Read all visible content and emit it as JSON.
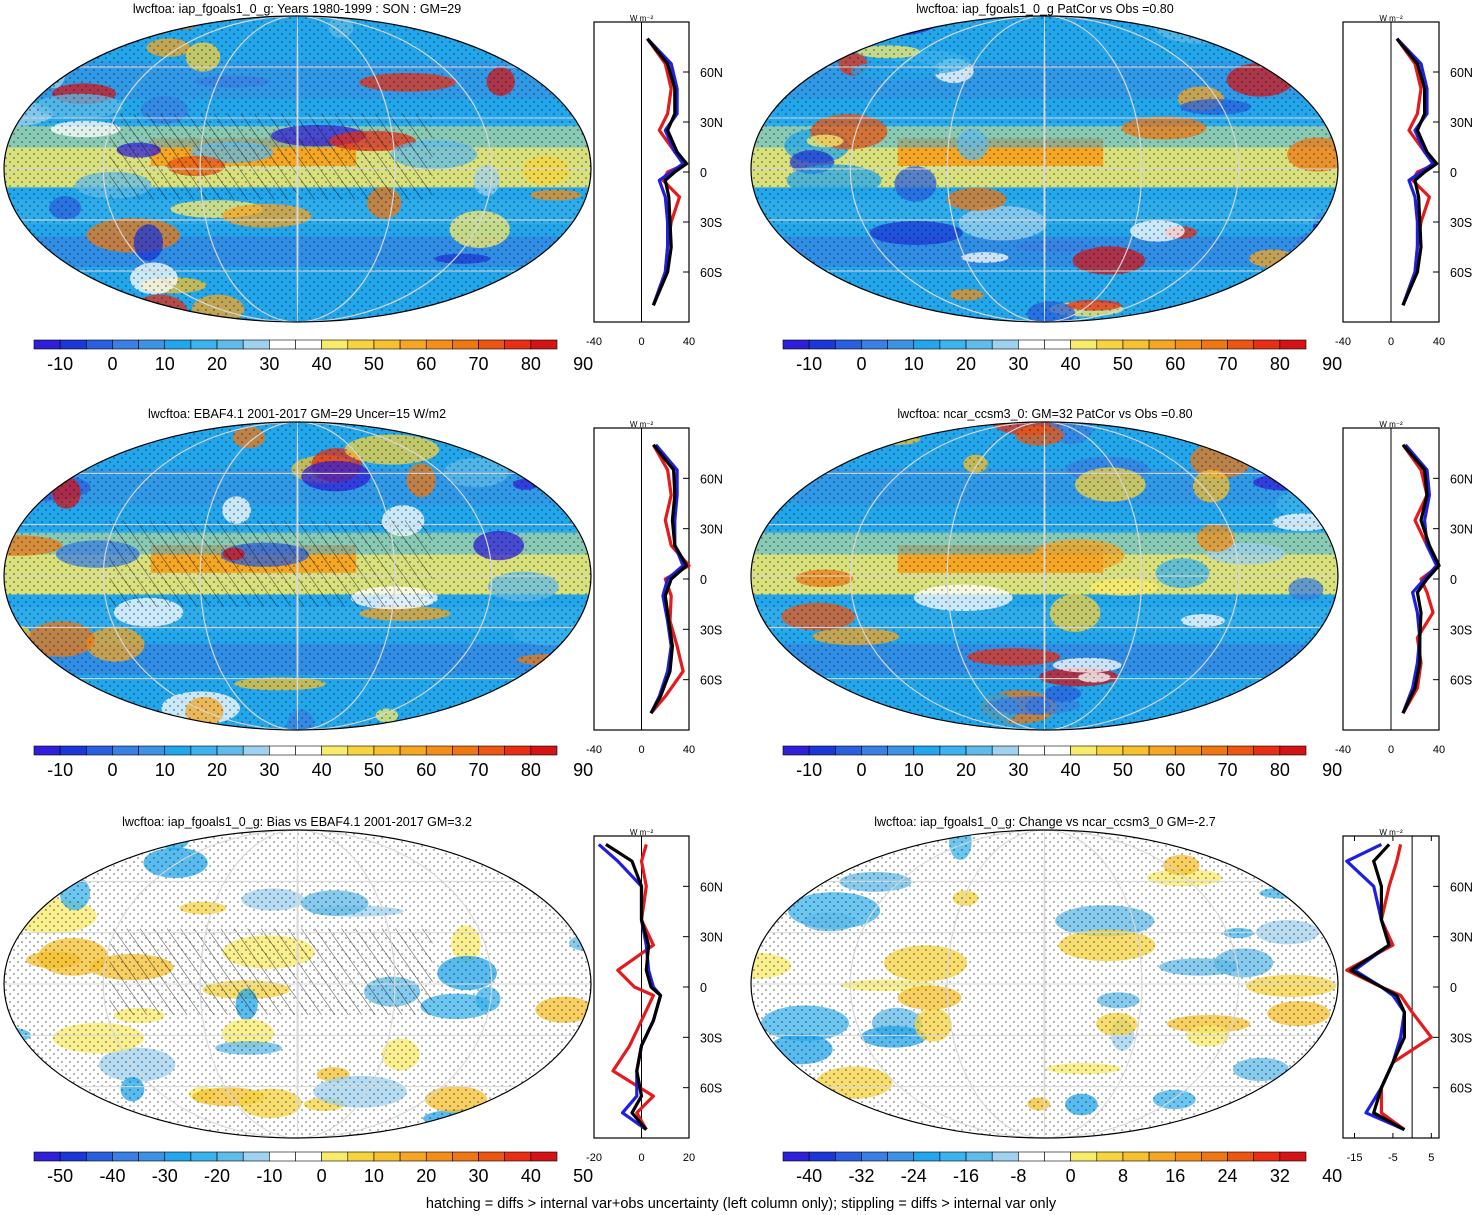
{
  "footer_note": "hatching = diffs > internal var+obs uncertainty (left column only); stippling = diffs > internal var only",
  "units_label": "W m⁻²",
  "lat_ticks": [
    "60N",
    "30N",
    "0",
    "30S",
    "60S"
  ],
  "lat_values": [
    60,
    30,
    0,
    -30,
    -60
  ],
  "colors": {
    "full_scale": [
      "#2f1fd9",
      "#1c37d8",
      "#2a60df",
      "#3a7fe4",
      "#3c93e6",
      "#22a6ec",
      "#3ab3ee",
      "#5fbbea",
      "#9ed2ef",
      "#ffffff",
      "#ffffff",
      "#f9eb6a",
      "#f6d33f",
      "#f6c02e",
      "#f5a623",
      "#f38f19",
      "#ef7713",
      "#eb5612",
      "#e82e14",
      "#d41316"
    ],
    "line_model": "#e41a1c",
    "line_obs": "#1f1fe0",
    "line_ref": "#000000"
  },
  "panels": [
    {
      "id": "model",
      "title": "lwcftoa: iap_fgoals1_0_g: Years 1980-1999 : SON : GM=29",
      "colorbar_labels": [
        "-10",
        "0",
        "10",
        "20",
        "30",
        "40",
        "50",
        "60",
        "70",
        "80",
        "90"
      ],
      "profile_ticks": [
        "-40",
        "0",
        "40"
      ],
      "hatched": true,
      "style": "full",
      "chart_data": {
        "type": "line",
        "x_label": "",
        "y_label": "",
        "xlim": [
          -40,
          40
        ],
        "ylim": [
          -90,
          90
        ],
        "series": [
          {
            "color": "red",
            "lat": [
              -80,
              -60,
              -45,
              -30,
              -15,
              -5,
              0,
              5,
              12,
              25,
              35,
              50,
              65,
              80
            ],
            "values": [
              10,
              20,
              22,
              25,
              32,
              18,
              22,
              38,
              28,
              15,
              22,
              25,
              20,
              5
            ]
          },
          {
            "color": "blue",
            "lat": [
              -80,
              -60,
              -45,
              -30,
              -15,
              -5,
              0,
              5,
              12,
              25,
              35,
              50,
              65,
              80
            ],
            "values": [
              10,
              20,
              22,
              22,
              20,
              15,
              25,
              35,
              28,
              20,
              30,
              30,
              25,
              5
            ]
          },
          {
            "color": "black",
            "lat": [
              -80,
              -60,
              -45,
              -30,
              -15,
              -5,
              0,
              5,
              12,
              25,
              35,
              50,
              65,
              80
            ],
            "values": [
              10,
              22,
              25,
              24,
              23,
              20,
              28,
              38,
              30,
              22,
              28,
              28,
              22,
              5
            ]
          }
        ]
      }
    },
    {
      "id": "model-patcor",
      "title": "lwcftoa: iap_fgoals1_0_g PatCor vs Obs =0.80",
      "colorbar_labels": [
        "-10",
        "0",
        "10",
        "20",
        "30",
        "40",
        "50",
        "60",
        "70",
        "80",
        "90"
      ],
      "profile_ticks": [
        "-40",
        "0",
        "40"
      ],
      "hatched": false,
      "style": "full",
      "chart_data": {
        "type": "line",
        "x_label": "",
        "y_label": "",
        "xlim": [
          -40,
          40
        ],
        "ylim": [
          -90,
          90
        ],
        "series": [
          {
            "color": "red",
            "lat": [
              -80,
              -60,
              -45,
              -30,
              -15,
              -5,
              0,
              5,
              12,
              25,
              35,
              50,
              65,
              80
            ],
            "values": [
              10,
              20,
              22,
              25,
              32,
              18,
              22,
              38,
              28,
              15,
              22,
              25,
              20,
              5
            ]
          },
          {
            "color": "blue",
            "lat": [
              -80,
              -60,
              -45,
              -30,
              -15,
              -5,
              0,
              5,
              12,
              25,
              35,
              50,
              65,
              80
            ],
            "values": [
              10,
              20,
              22,
              22,
              20,
              15,
              25,
              35,
              28,
              20,
              30,
              30,
              25,
              5
            ]
          },
          {
            "color": "black",
            "lat": [
              -80,
              -60,
              -45,
              -30,
              -15,
              -5,
              0,
              5,
              12,
              25,
              35,
              50,
              65,
              80
            ],
            "values": [
              10,
              22,
              25,
              24,
              23,
              20,
              28,
              38,
              30,
              22,
              28,
              28,
              22,
              5
            ]
          }
        ]
      }
    },
    {
      "id": "obs",
      "title": "lwcftoa: EBAF4.1 2001-2017 GM=29 Uncer=15 W/m2",
      "colorbar_labels": [
        "-10",
        "0",
        "10",
        "20",
        "30",
        "40",
        "50",
        "60",
        "70",
        "80",
        "90"
      ],
      "profile_ticks": [
        "-40",
        "0",
        "40"
      ],
      "hatched": true,
      "style": "full",
      "chart_data": {
        "type": "line",
        "x_label": "",
        "y_label": "",
        "xlim": [
          -40,
          40
        ],
        "ylim": [
          -90,
          90
        ],
        "series": [
          {
            "color": "red",
            "lat": [
              -80,
              -70,
              -55,
              -40,
              -25,
              -10,
              0,
              8,
              20,
              35,
              50,
              65,
              80
            ],
            "values": [
              8,
              20,
              35,
              30,
              24,
              25,
              20,
              40,
              25,
              20,
              25,
              22,
              10
            ]
          },
          {
            "color": "blue",
            "lat": [
              -80,
              -70,
              -55,
              -40,
              -25,
              -10,
              0,
              8,
              20,
              35,
              50,
              65,
              80
            ],
            "values": [
              8,
              15,
              22,
              25,
              22,
              18,
              22,
              35,
              28,
              28,
              30,
              30,
              12
            ]
          },
          {
            "color": "black",
            "lat": [
              -80,
              -70,
              -55,
              -40,
              -25,
              -10,
              0,
              8,
              20,
              35,
              50,
              65,
              80
            ],
            "values": [
              8,
              16,
              24,
              26,
              23,
              20,
              25,
              38,
              28,
              26,
              28,
              27,
              10
            ]
          }
        ]
      }
    },
    {
      "id": "ref",
      "title": "lwcftoa: ncar_ccsm3_0: GM=32 PatCor vs Obs =0.80",
      "colorbar_labels": [
        "-10",
        "0",
        "10",
        "20",
        "30",
        "40",
        "50",
        "60",
        "70",
        "80",
        "90"
      ],
      "profile_ticks": [
        "-40",
        "0",
        "40"
      ],
      "hatched": false,
      "style": "full",
      "chart_data": {
        "type": "line",
        "x_label": "",
        "y_label": "",
        "xlim": [
          -40,
          40
        ],
        "ylim": [
          -90,
          90
        ],
        "series": [
          {
            "color": "red",
            "lat": [
              -80,
              -65,
              -50,
              -35,
              -20,
              -8,
              0,
              8,
              20,
              35,
              50,
              65,
              80
            ],
            "values": [
              10,
              22,
              25,
              22,
              35,
              30,
              25,
              40,
              30,
              20,
              30,
              25,
              10
            ]
          },
          {
            "color": "blue",
            "lat": [
              -80,
              -65,
              -50,
              -35,
              -20,
              -8,
              0,
              8,
              20,
              35,
              50,
              65,
              80
            ],
            "values": [
              10,
              18,
              22,
              24,
              22,
              18,
              28,
              38,
              30,
              28,
              32,
              30,
              12
            ]
          },
          {
            "color": "black",
            "lat": [
              -80,
              -65,
              -50,
              -35,
              -20,
              -8,
              0,
              8,
              20,
              35,
              50,
              65,
              80
            ],
            "values": [
              10,
              20,
              24,
              24,
              25,
              22,
              30,
              40,
              32,
              25,
              30,
              28,
              10
            ]
          }
        ]
      }
    },
    {
      "id": "bias",
      "title": "lwcftoa: iap_fgoals1_0_g: Bias vs EBAF4.1 2001-2017  GM=3.2",
      "colorbar_labels": [
        "-50",
        "-40",
        "-30",
        "-20",
        "-10",
        "0",
        "10",
        "20",
        "30",
        "40",
        "50"
      ],
      "profile_ticks": [
        "-20",
        "0",
        "20"
      ],
      "hatched": true,
      "style": "diff",
      "chart_data": {
        "type": "line",
        "x_label": "",
        "y_label": "",
        "xlim": [
          -20,
          20
        ],
        "ylim": [
          -90,
          90
        ],
        "series": [
          {
            "color": "red",
            "lat": [
              -85,
              -75,
              -65,
              -50,
              -35,
              -20,
              -5,
              0,
              10,
              25,
              40,
              60,
              75,
              85
            ],
            "values": [
              2,
              -2,
              5,
              -12,
              -5,
              0,
              5,
              -3,
              -10,
              5,
              0,
              2,
              0,
              2
            ]
          },
          {
            "color": "blue",
            "lat": [
              -85,
              -75,
              -65,
              -50,
              -35,
              -20,
              -5,
              0,
              10,
              25,
              40,
              60,
              75,
              85
            ],
            "values": [
              2,
              -8,
              -2,
              -2,
              0,
              5,
              8,
              5,
              3,
              2,
              0,
              0,
              -10,
              -18
            ]
          },
          {
            "color": "black",
            "lat": [
              -85,
              -75,
              -65,
              -50,
              -35,
              -20,
              -5,
              0,
              10,
              25,
              40,
              60,
              75,
              85
            ],
            "values": [
              2,
              -4,
              0,
              -2,
              0,
              5,
              8,
              4,
              2,
              3,
              0,
              0,
              -4,
              -15
            ]
          }
        ]
      }
    },
    {
      "id": "change",
      "title": "lwcftoa: iap_fgoals1_0_g: Change vs ncar_ccsm3_0 GM=-2.7",
      "colorbar_labels": [
        "-40",
        "-32",
        "-24",
        "-16",
        "-8",
        "0",
        "8",
        "16",
        "24",
        "32",
        "40"
      ],
      "profile_ticks": [
        "-15",
        "-5",
        "5"
      ],
      "hatched": false,
      "style": "diff",
      "chart_data": {
        "type": "line",
        "x_label": "",
        "y_label": "",
        "xlim": [
          -18,
          7
        ],
        "ylim": [
          -90,
          90
        ],
        "series": [
          {
            "color": "red",
            "lat": [
              -85,
              -75,
              -60,
              -45,
              -30,
              -15,
              -5,
              0,
              10,
              25,
              40,
              60,
              75,
              85
            ],
            "values": [
              -2,
              -8,
              -8,
              -5,
              5,
              0,
              -3,
              -8,
              -17,
              -5,
              -8,
              -6,
              -4,
              -3
            ]
          },
          {
            "color": "blue",
            "lat": [
              -85,
              -75,
              -60,
              -45,
              -30,
              -15,
              -5,
              0,
              10,
              25,
              40,
              60,
              75,
              85
            ],
            "values": [
              -2,
              -12,
              -8,
              -5,
              -3,
              -2,
              -5,
              -8,
              -15,
              -6,
              -8,
              -10,
              -17,
              -8
            ]
          },
          {
            "color": "black",
            "lat": [
              -85,
              -75,
              -60,
              -45,
              -30,
              -15,
              -5,
              0,
              10,
              25,
              40,
              60,
              75,
              85
            ],
            "values": [
              -2,
              -10,
              -8,
              -5,
              -2,
              -2,
              -4,
              -8,
              -16,
              -6,
              -8,
              -8,
              -10,
              -6
            ]
          }
        ]
      }
    }
  ]
}
